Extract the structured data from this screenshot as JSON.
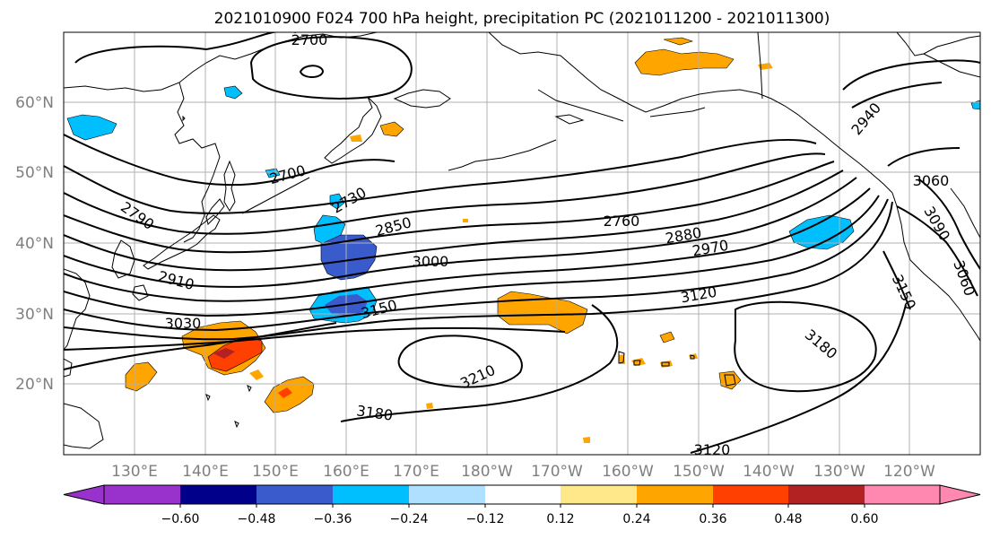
{
  "title": "2021010900 F024 700 hPa height, precipitation PC (2021011200 - 2021011300)",
  "lat_labels": [
    "60°N",
    "50°N",
    "40°N",
    "30°N",
    "20°N"
  ],
  "lon_labels": [
    "130°E",
    "140°E",
    "150°E",
    "160°E",
    "170°E",
    "180°W",
    "170°W",
    "160°W",
    "150°W",
    "140°W",
    "130°W",
    "120°W"
  ],
  "contour_labels": {
    "c2700a": "2700",
    "c2700b": "2700",
    "c2790": "2790",
    "c2730": "2730",
    "c2850": "2850",
    "c2910": "2910",
    "c3000": "3000",
    "c3030": "3030",
    "c3150": "3150",
    "c2760": "2760",
    "c2880": "2880",
    "c2970": "2970",
    "c3120a": "3120",
    "c3210": "3210",
    "c3180a": "3180",
    "c3120b": "3120",
    "c2940": "2940",
    "c3060a": "3060",
    "c3090": "3090",
    "c3060b": "3060",
    "c3150b": "3150",
    "c3180b": "3180"
  },
  "colorbar": {
    "colors": [
      "#9932cc",
      "#00008b",
      "#3a5bcc",
      "#00bfff",
      "#b0e0ff",
      "#ffffff",
      "#ffe88a",
      "#ffa500",
      "#ff4000",
      "#b22222",
      "#ff88b0"
    ],
    "ticks": [
      "−0.60",
      "−0.48",
      "−0.36",
      "−0.24",
      "−0.12",
      "0.12",
      "0.24",
      "0.36",
      "0.48",
      "0.60"
    ]
  }
}
